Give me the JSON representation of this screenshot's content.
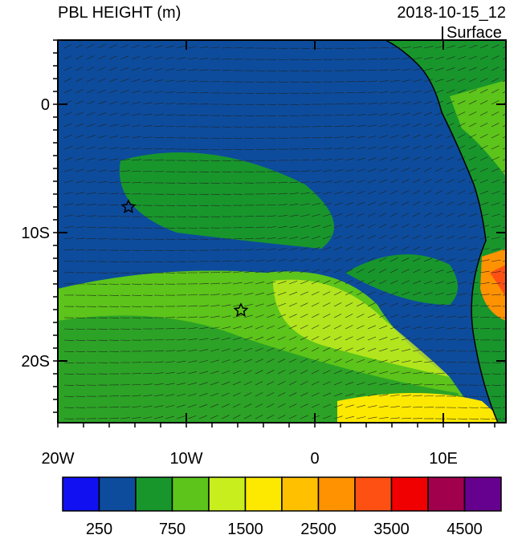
{
  "header": {
    "title": "PBL HEIGHT (m)",
    "date": "2018-10-15_12",
    "level": "Surface"
  },
  "map": {
    "lat_labels": [
      "0",
      "10S",
      "20S"
    ],
    "lon_labels": [
      "20W",
      "10W",
      "0",
      "10E"
    ]
  },
  "colorbar": {
    "colors": [
      "#1010f0",
      "#0d4c9c",
      "#18962c",
      "#5cc41a",
      "#c8ee1e",
      "#fde800",
      "#ffc000",
      "#ff9200",
      "#ff5014",
      "#f00000",
      "#a0004c",
      "#66008e"
    ],
    "labels": [
      250,
      750,
      1500,
      2500,
      3500,
      4500
    ]
  }
}
